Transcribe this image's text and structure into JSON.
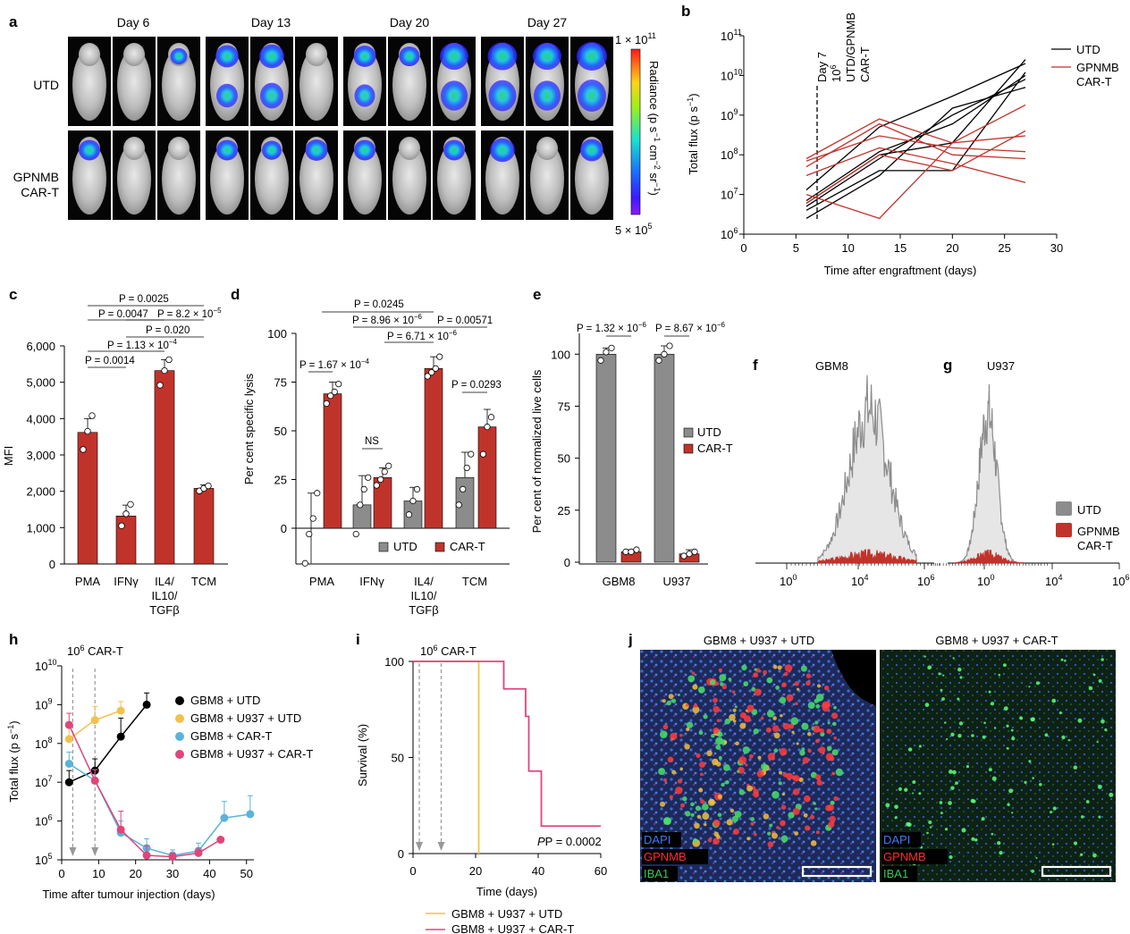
{
  "colors": {
    "red": "#C0332B",
    "black": "#000000",
    "gray": "#8C8C8C",
    "yellow": "#F2C14E",
    "blue": "#59B4D8",
    "pink": "#E0457B",
    "green": "#43C96A"
  },
  "panelA": {
    "letter": "a",
    "days": [
      "Day 6",
      "Day 13",
      "Day 20",
      "Day 27"
    ],
    "rows": [
      "UTD",
      "GPNMB",
      "CAR-T"
    ],
    "scale": {
      "top_base": "1 × 10",
      "top_exp": "11",
      "bottom_base": "5 × 10",
      "bottom_exp": "5",
      "label": "Radiance (p s",
      "l2": "cm",
      "l3": "sr"
    },
    "heat": [
      [
        0,
        0,
        0.25
      ],
      [
        0.6,
        0.7,
        0
      ],
      [
        0.55,
        0.45,
        0.9
      ],
      [
        0.95,
        0.9,
        1.0
      ],
      [
        0.5,
        0,
        0
      ],
      [
        0.5,
        0.4,
        0.55
      ],
      [
        0.5,
        0,
        0.5
      ],
      [
        0.7,
        0,
        0.6
      ]
    ]
  },
  "panelB": {
    "letter": "b",
    "ylabel": "Total flux (p s",
    "xlabel": "Time after engraftment (days)",
    "annotation": [
      "Day 7",
      "10",
      "UTD/GPNMB",
      "CAR-T"
    ],
    "annotation_exp": "6",
    "legend": [
      "UTD",
      "GPNMB",
      "CAR-T"
    ],
    "xticks": [
      "0",
      "5",
      "10",
      "15",
      "20",
      "25",
      "30"
    ],
    "yticks_exp": [
      "6",
      "7",
      "8",
      "9",
      "10",
      "11"
    ],
    "chart_data": {
      "type": "line",
      "x_range": [
        0,
        30
      ],
      "y_range": [
        1000000.0,
        100000000000.0
      ],
      "y_scale": "log",
      "marker_day": 7,
      "series": [
        {
          "name": "UTD",
          "lines": [
            [
              [
                6,
                6000000.0
              ],
              [
                13,
                100000000.0
              ],
              [
                20,
                200000000.0
              ],
              [
                27,
                25000000000.0
              ]
            ],
            [
              [
                6,
                13000000.0
              ],
              [
                13,
                500000000.0
              ],
              [
                20,
                3000000000.0
              ],
              [
                27,
                20000000000.0
              ]
            ],
            [
              [
                6,
                5000000.0
              ],
              [
                13,
                80000000.0
              ],
              [
                20,
                1000000000.0
              ],
              [
                27,
                8000000000.0
              ]
            ],
            [
              [
                6,
                4000000.0
              ],
              [
                13,
                40000000.0
              ],
              [
                20,
                40000000.0
              ],
              [
                27,
                12000000000.0
              ]
            ],
            [
              [
                6,
                2500000.0
              ],
              [
                13,
                30000000.0
              ],
              [
                20,
                1500000000.0
              ],
              [
                27,
                5000000000.0
              ]
            ],
            [
              [
                6,
                7000000.0
              ],
              [
                13,
                120000000.0
              ],
              [
                20,
                600000000.0
              ],
              [
                27,
                10000000000.0
              ]
            ]
          ]
        },
        {
          "name": "GPNMB CAR-T",
          "lines": [
            [
              [
                6,
                70000000.0
              ],
              [
                13,
                300000000.0
              ],
              [
                20,
                150000000.0
              ],
              [
                27,
                120000000.0
              ]
            ],
            [
              [
                6,
                80000000.0
              ],
              [
                13,
                800000000.0
              ],
              [
                20,
                200000000.0
              ],
              [
                27,
                1800000000.0
              ]
            ],
            [
              [
                6,
                10000000.0
              ],
              [
                13,
                2500000.0
              ],
              [
                20,
                200000000.0
              ],
              [
                27,
                300000000.0
              ]
            ],
            [
              [
                6,
                50000000.0
              ],
              [
                13,
                600000000.0
              ],
              [
                20,
                100000000.0
              ],
              [
                27,
                80000000.0
              ]
            ],
            [
              [
                6,
                30000000.0
              ],
              [
                13,
                150000000.0
              ],
              [
                20,
                60000000.0
              ],
              [
                27,
                20000000.0
              ]
            ],
            [
              [
                6,
                6000000.0
              ],
              [
                13,
                100000000.0
              ],
              [
                20,
                40000000.0
              ],
              [
                27,
                400000000.0
              ]
            ]
          ]
        }
      ]
    }
  },
  "panelC": {
    "letter": "c",
    "ylabel": "MFI",
    "categories": [
      "PMA",
      "IFNγ",
      "IL4/",
      "IL10/",
      "TGFβ",
      "TCM"
    ],
    "yticks": [
      "0",
      "1,000",
      "2,000",
      "3,000",
      "4,000",
      "5,000",
      "6,000"
    ],
    "pvals": [
      "P = 0.0025",
      "P = 0.0047",
      "P = 8.2 × 10",
      "P = 0.020",
      "P = 1.13 × 10",
      "P = 0.0014"
    ],
    "pexp": [
      "−5",
      "−4"
    ],
    "chart_data": {
      "type": "bar",
      "categories": [
        "PMA",
        "IFNγ",
        "IL4/IL10/TGFβ",
        "TCM"
      ],
      "values": [
        3620,
        1320,
        5320,
        2080
      ],
      "err": [
        380,
        300,
        300,
        100
      ],
      "ylim": [
        0,
        6000
      ],
      "points": [
        [
          3150,
          3650,
          4080
        ],
        [
          1050,
          1380,
          1640
        ],
        [
          4920,
          5320,
          5620
        ],
        [
          2010,
          2080,
          2150
        ]
      ]
    }
  },
  "panelD": {
    "letter": "d",
    "ylabel": "Per cent specific lysis",
    "categories": [
      "PMA",
      "IFNγ",
      "IL4/",
      "IL10/",
      "TGFβ",
      "TCM"
    ],
    "yticks": [
      "0",
      "25",
      "50",
      "75",
      "100"
    ],
    "legend": [
      "UTD",
      "CAR-T"
    ],
    "pvals": [
      "P = 0.0245",
      "P = 8.96 × 10",
      "P = 0.00571",
      "P = 6.71 × 10",
      "P = 1.67 × 10",
      "NS",
      "P = 0.0293"
    ],
    "pexp": [
      "−6",
      "−6",
      "−4"
    ],
    "chart_data": {
      "type": "bar",
      "categories": [
        "PMA",
        "IFNγ",
        "IL4/IL10/TGFβ",
        "TCM"
      ],
      "series": [
        {
          "name": "UTD",
          "values": [
            0,
            12,
            14,
            26
          ],
          "err": [
            18,
            15,
            7,
            13
          ]
        },
        {
          "name": "CAR-T",
          "values": [
            69,
            26,
            82,
            52
          ],
          "err": [
            6,
            5,
            6,
            9
          ]
        }
      ],
      "ylim": [
        -10,
        100
      ],
      "points": {
        "UTD": [
          [
            -18,
            -3,
            5,
            18
          ],
          [
            -3,
            12,
            20,
            26
          ],
          [
            7,
            14,
            20
          ],
          [
            12,
            20,
            31,
            38
          ]
        ],
        "CAR-T": [
          [
            64,
            68,
            70,
            74
          ],
          [
            22,
            25,
            29,
            32
          ],
          [
            78,
            80,
            82,
            88
          ],
          [
            38,
            52,
            57
          ]
        ]
      }
    }
  },
  "panelE": {
    "letter": "e",
    "ylabel": "Per cent of normalized live cells",
    "categories": [
      "GBM8",
      "U937"
    ],
    "yticks": [
      "0",
      "25",
      "50",
      "75",
      "100"
    ],
    "legend": [
      "UTD",
      "CAR-T"
    ],
    "pvals": [
      "P = 1.32 × 10",
      "P = 8.67 × 10"
    ],
    "pexp": [
      "−6",
      "−6"
    ],
    "chart_data": {
      "type": "bar",
      "categories": [
        "GBM8",
        "U937"
      ],
      "series": [
        {
          "name": "UTD",
          "values": [
            100,
            100
          ],
          "err": [
            3,
            4
          ]
        },
        {
          "name": "CAR-T",
          "values": [
            5,
            4
          ],
          "err": [
            1,
            2
          ]
        }
      ],
      "ylim": [
        0,
        110
      ],
      "points": {
        "UTD": [
          [
            97,
            101,
            103
          ],
          [
            97,
            100,
            104
          ]
        ],
        "CAR-T": [
          [
            5,
            5,
            6
          ],
          [
            3,
            4,
            5
          ]
        ]
      }
    }
  },
  "panelF": {
    "letter": "f",
    "title": "GBM8",
    "xticks_exp": [
      "0",
      "4",
      "6"
    ]
  },
  "panelG": {
    "letter": "g",
    "title": "U937",
    "xticks_exp": [
      "0",
      "4",
      "6"
    ],
    "legend": [
      "UTD",
      "GPNMB",
      "CAR-T"
    ]
  },
  "panelH": {
    "letter": "h",
    "ylabel": "Total flux (p s",
    "xlabel": "Time after tumour injection (days)",
    "annotation": "10",
    "annotation_exp": "6",
    "annotation_tail": " CAR-T",
    "xticks": [
      "0",
      "10",
      "20",
      "30",
      "40",
      "50"
    ],
    "yticks_exp": [
      "5",
      "6",
      "7",
      "8",
      "9",
      "10"
    ],
    "legend": [
      "GBM8 + UTD",
      "GBM8 + U937 + UTD",
      "GBM8 + CAR-T",
      "GBM8 + U937 + CAR-T"
    ],
    "chart_data": {
      "type": "line",
      "y_scale": "log",
      "x_range": [
        0,
        52
      ],
      "y_range": [
        100000.0,
        10000000000.0
      ],
      "arrows": [
        3,
        9
      ],
      "series": [
        {
          "name": "GBM8 + UTD",
          "x": [
            2,
            9,
            16,
            23
          ],
          "y": [
            10000000.0,
            20000000.0,
            150000000.0,
            1000000000.0
          ],
          "err": [
            10000000.0,
            20000000.0,
            300000000.0,
            1000000000.0
          ]
        },
        {
          "name": "GBM8 + U937 + UTD",
          "x": [
            2,
            9,
            16
          ],
          "y": [
            130000000.0,
            400000000.0,
            700000000.0
          ],
          "err": [
            200000000.0,
            500000000.0,
            500000000.0
          ]
        },
        {
          "name": "GBM8 + CAR-T",
          "x": [
            2,
            9,
            16,
            23,
            30,
            37,
            44,
            51
          ],
          "y": [
            30000000.0,
            11000000.0,
            500000.0,
            200000.0,
            130000.0,
            170000.0,
            1200000.0,
            1500000.0
          ],
          "err": [
            30000000.0,
            10000000.0,
            500000.0,
            150000.0,
            50000.0,
            100000.0,
            2000000.0,
            3000000.0
          ]
        },
        {
          "name": "GBM8 + U937 + CAR-T",
          "x": [
            2,
            9,
            16,
            23,
            30,
            37,
            43
          ],
          "y": [
            300000000.0,
            11000000.0,
            600000.0,
            130000.0,
            120000.0,
            150000.0,
            330000.0
          ],
          "err": [
            300000000.0,
            10000000.0,
            1200000.0,
            100000.0,
            30000.0,
            50000.0,
            0
          ]
        }
      ]
    }
  },
  "panelI": {
    "letter": "i",
    "ylabel": "Survival (%)",
    "xlabel": "Time (days)",
    "annotation": "10",
    "annotation_exp": "6",
    "annotation_tail": " CAR-T",
    "pvalue": "P = 0.0002",
    "xticks": [
      "0",
      "20",
      "40",
      "60"
    ],
    "yticks": [
      "0",
      "50",
      "100"
    ],
    "legend": [
      "GBM8 + U937 + UTD",
      "GBM8 + U937 + CAR-T"
    ],
    "chart_data": {
      "type": "line",
      "x_range": [
        0,
        60
      ],
      "y_range": [
        0,
        100
      ],
      "arrows": [
        2,
        9
      ],
      "series": [
        {
          "name": "GBM8 + U937 + UTD",
          "steps": [
            [
              0,
              100
            ],
            [
              21,
              100
            ],
            [
              21,
              0
            ]
          ]
        },
        {
          "name": "GBM8 + U937 + CAR-T",
          "steps": [
            [
              0,
              100
            ],
            [
              29,
              100
            ],
            [
              29,
              85.7
            ],
            [
              36,
              85.7
            ],
            [
              36,
              71.4
            ],
            [
              37,
              71.4
            ],
            [
              37,
              42.9
            ],
            [
              41,
              42.9
            ],
            [
              41,
              14.3
            ],
            [
              60,
              14.3
            ]
          ]
        }
      ]
    }
  },
  "panelJ": {
    "letter": "j",
    "titles": [
      "GBM8 + U937 + UTD",
      "GBM8 + U937 + CAR-T"
    ],
    "channels": [
      "DAPI",
      "GPNMB",
      "IBA1"
    ]
  }
}
